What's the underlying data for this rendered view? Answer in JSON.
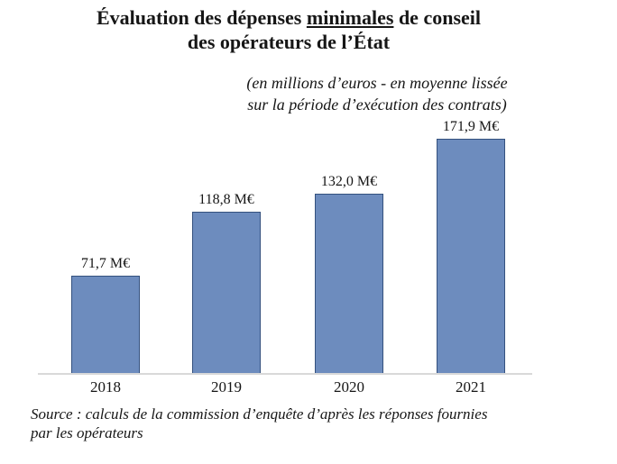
{
  "title": {
    "line1_part1": "Évaluation des dépenses ",
    "line1_underlined": "minimales",
    "line1_part2": " de conseil",
    "line2": "des opérateurs de l’État"
  },
  "subtitle": {
    "line1": "(en millions d’euros - en moyenne lissée",
    "line2": "sur la période d’exécution des contrats)"
  },
  "source": {
    "line1": "Source : calculs de la commission d’enquête d’après les réponses fournies",
    "line2": "par les opérateurs"
  },
  "chart_data": {
    "type": "bar",
    "title": "Évaluation des dépenses minimales de conseil des opérateurs de l’État",
    "subtitle": "(en millions d’euros - en moyenne lissée sur la période d’exécution des contrats)",
    "source": "Source : calculs de la commission d’enquête d’après les réponses fournies par les opérateurs",
    "categories": [
      "2018",
      "2019",
      "2020",
      "2021"
    ],
    "values": [
      71.7,
      118.8,
      132.0,
      171.9
    ],
    "value_labels": [
      "71,7 M€",
      "118,8 M€",
      "132,0 M€",
      "171,9 M€"
    ],
    "unit": "M€",
    "ylim": [
      0,
      180
    ],
    "grid": false,
    "legend": false,
    "bar_color": "#6d8cbe",
    "bar_border_color": "#34517e",
    "axis_line_color": "#d9d9d9"
  }
}
